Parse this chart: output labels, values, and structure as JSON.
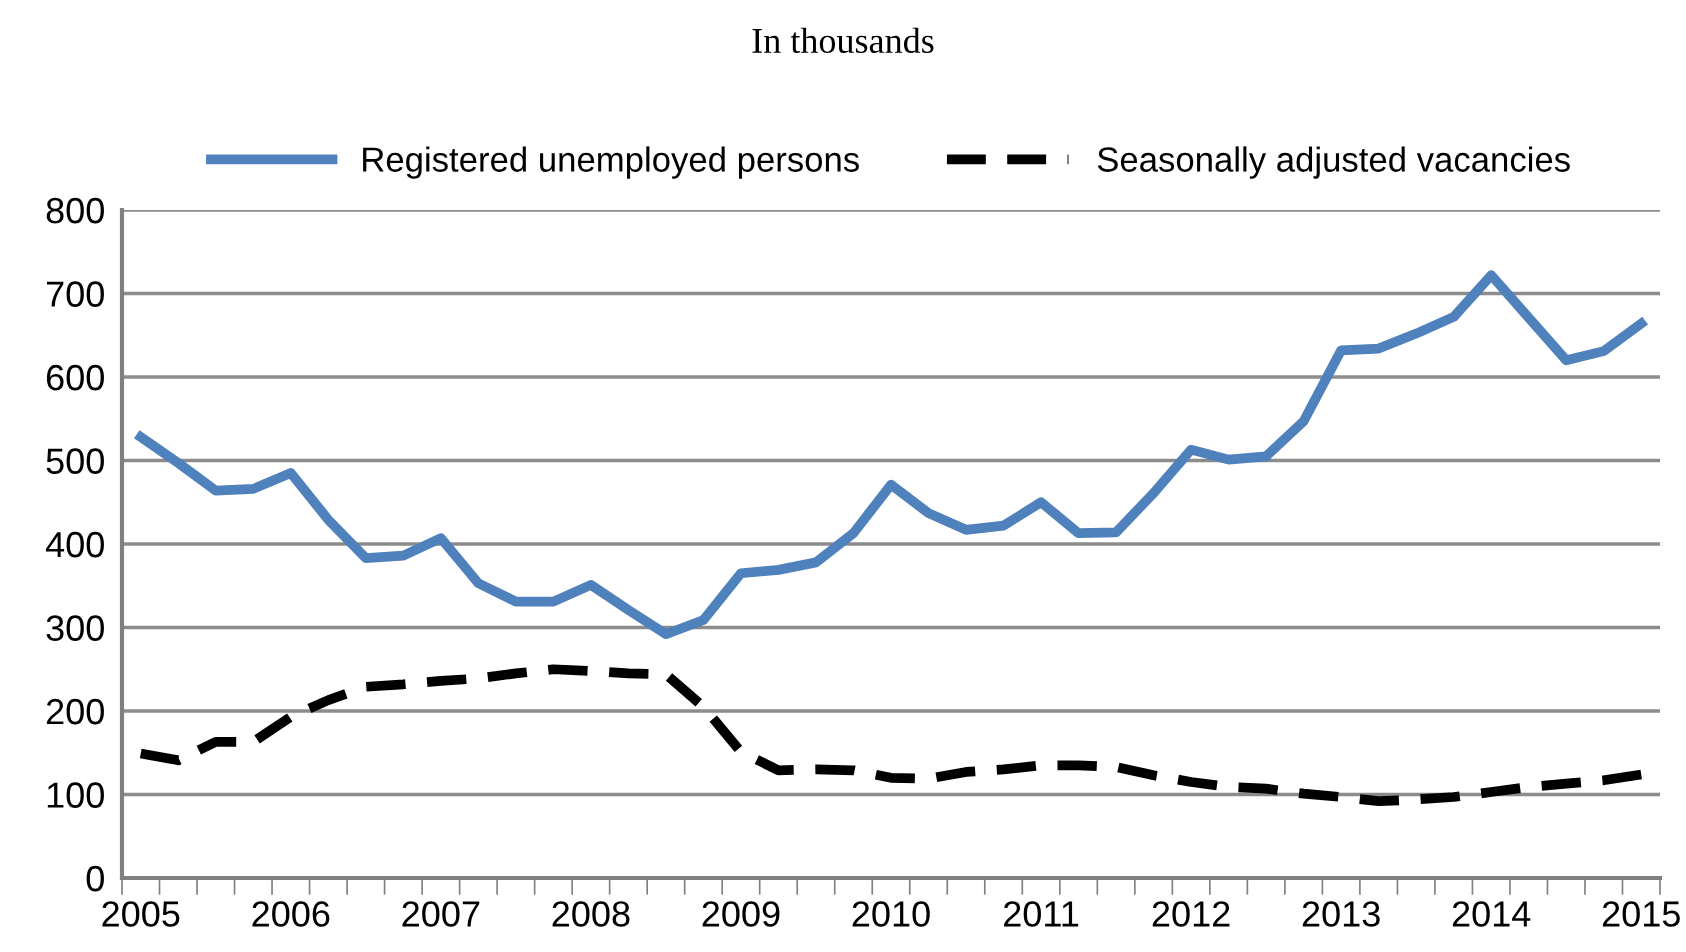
{
  "chart_data": {
    "type": "line",
    "title": "In thousands",
    "categories": [
      "2005",
      null,
      null,
      null,
      "2006",
      null,
      null,
      null,
      "2007",
      null,
      null,
      null,
      "2008",
      null,
      null,
      null,
      "2009",
      null,
      null,
      null,
      "2010",
      null,
      null,
      null,
      "2011",
      null,
      null,
      null,
      "2012",
      null,
      null,
      null,
      "2013",
      null,
      null,
      null,
      "2014",
      null,
      null,
      null,
      "2015"
    ],
    "series": [
      {
        "name": "Registered unemployed persons",
        "color": "#4f81bd",
        "line_style": "solid",
        "values": [
          528,
          497,
          464,
          466,
          485,
          429,
          383,
          386,
          407,
          353,
          331,
          331,
          351,
          321,
          292,
          309,
          365,
          369,
          378,
          413,
          471,
          437,
          417,
          422,
          450,
          413,
          414,
          461,
          513,
          501,
          505,
          547,
          632,
          634,
          652,
          672,
          722,
          671,
          620,
          631,
          664
        ]
      },
      {
        "name": "Seasonally adjusted vacancies",
        "color": "#000000",
        "line_style": "dashed",
        "values": [
          149,
          141,
          163,
          163,
          193,
          213,
          229,
          232,
          236,
          239,
          245,
          250,
          248,
          245,
          244,
          205,
          151,
          129,
          130,
          129,
          120,
          119,
          127,
          130,
          135,
          135,
          133,
          123,
          115,
          109,
          107,
          101,
          97,
          92,
          94,
          97,
          103,
          109,
          113,
          117,
          124
        ]
      }
    ],
    "ylim": [
      0,
      800
    ],
    "yticks": [
      0,
      100,
      200,
      300,
      400,
      500,
      600,
      700,
      800
    ],
    "grid": "y",
    "legend": "top",
    "marker": "none"
  }
}
